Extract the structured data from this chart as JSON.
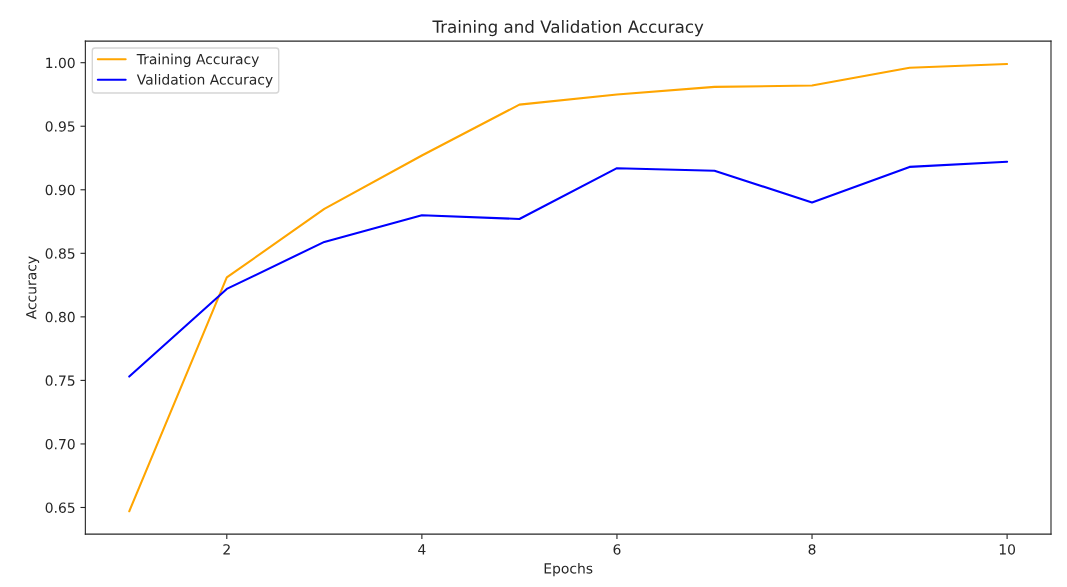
{
  "chart_data": {
    "type": "line",
    "title": "Training and Validation Accuracy",
    "xlabel": "Epochs",
    "ylabel": "Accuracy",
    "x": [
      1,
      2,
      3,
      4,
      5,
      6,
      7,
      8,
      9,
      10
    ],
    "series": [
      {
        "name": "Training Accuracy",
        "color": "#ffa500",
        "values": [
          0.647,
          0.831,
          0.885,
          0.927,
          0.967,
          0.975,
          0.981,
          0.982,
          0.996,
          0.999
        ]
      },
      {
        "name": "Validation Accuracy",
        "color": "#0000ff",
        "values": [
          0.753,
          0.822,
          0.859,
          0.88,
          0.877,
          0.917,
          0.915,
          0.89,
          0.918,
          0.922
        ]
      }
    ],
    "xlim": [
      0.55,
      10.45
    ],
    "ylim": [
      0.629,
      1.017
    ],
    "xticks": [
      2,
      4,
      6,
      8,
      10
    ],
    "yticks": [
      0.65,
      {
        "value": 0.7,
        "label": "0.70"
      },
      0.75,
      {
        "value": 0.8,
        "label": "0.80"
      },
      0.85,
      {
        "value": 0.9,
        "label": "0.90"
      },
      0.95,
      {
        "value": 1.0,
        "label": "1.00"
      }
    ],
    "legend": "top left",
    "grid": false,
    "marker": "none",
    "line_style": "solid"
  }
}
